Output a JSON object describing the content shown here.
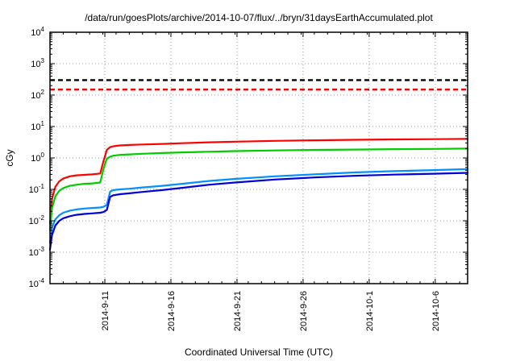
{
  "chart_data": {
    "type": "line",
    "title": "/data/run/goesPlots/archive/2014-10-07/flux/../bryn/31daysEarthAccumulated.plot",
    "xlabel": "Coordinated Universal Time (UTC)",
    "ylabel": "cGy",
    "y_scale": "log",
    "y_range_exponents": [
      -4,
      4
    ],
    "y_ticks_exponents": [
      4,
      3,
      2,
      1,
      0,
      -1,
      -2,
      -3,
      -4
    ],
    "x_range_days": [
      0,
      31.6
    ],
    "x_ticks": [
      {
        "day": 4.15,
        "label": "2014-9-11"
      },
      {
        "day": 9.15,
        "label": "2014-9-16"
      },
      {
        "day": 14.15,
        "label": "2014-9-21"
      },
      {
        "day": 19.15,
        "label": "2014-9-26"
      },
      {
        "day": 24.15,
        "label": "2014-10-1"
      },
      {
        "day": 29.15,
        "label": "2014-10-6"
      }
    ],
    "grid": true,
    "grid_color": "#999999",
    "legend_position": "none",
    "thresholds": [
      {
        "name": "upper-limit-line",
        "value": 300,
        "color": "#000000",
        "style": "dashed"
      },
      {
        "name": "lower-limit-line",
        "value": 150,
        "color": "#ff0000",
        "style": "dashed"
      }
    ],
    "series": [
      {
        "name": "red",
        "color": "#ff0000",
        "points": [
          [
            0,
            0.008
          ],
          [
            0.15,
            0.05
          ],
          [
            0.4,
            0.12
          ],
          [
            0.7,
            0.18
          ],
          [
            1.0,
            0.22
          ],
          [
            1.5,
            0.26
          ],
          [
            2.0,
            0.28
          ],
          [
            2.6,
            0.29
          ],
          [
            3.2,
            0.3
          ],
          [
            3.8,
            0.32
          ],
          [
            4.05,
            0.8
          ],
          [
            4.3,
            1.8
          ],
          [
            4.55,
            2.2
          ],
          [
            4.8,
            2.35
          ],
          [
            5.3,
            2.5
          ],
          [
            6,
            2.58
          ],
          [
            7,
            2.68
          ],
          [
            8.5,
            2.8
          ],
          [
            10,
            2.95
          ],
          [
            12,
            3.15
          ],
          [
            14,
            3.3
          ],
          [
            17,
            3.5
          ],
          [
            20,
            3.65
          ],
          [
            23,
            3.78
          ],
          [
            26,
            3.88
          ],
          [
            29,
            3.95
          ],
          [
            31.6,
            4.05
          ]
        ]
      },
      {
        "name": "green",
        "color": "#00cc00",
        "points": [
          [
            0,
            0.005
          ],
          [
            0.15,
            0.025
          ],
          [
            0.4,
            0.06
          ],
          [
            0.7,
            0.09
          ],
          [
            1.0,
            0.11
          ],
          [
            1.5,
            0.13
          ],
          [
            2.0,
            0.14
          ],
          [
            2.6,
            0.15
          ],
          [
            3.2,
            0.155
          ],
          [
            3.8,
            0.165
          ],
          [
            4.05,
            0.45
          ],
          [
            4.3,
            0.95
          ],
          [
            4.55,
            1.1
          ],
          [
            4.8,
            1.18
          ],
          [
            5.3,
            1.25
          ],
          [
            6,
            1.3
          ],
          [
            7,
            1.36
          ],
          [
            8.5,
            1.43
          ],
          [
            10,
            1.5
          ],
          [
            12,
            1.58
          ],
          [
            14,
            1.65
          ],
          [
            17,
            1.73
          ],
          [
            20,
            1.8
          ],
          [
            23,
            1.85
          ],
          [
            26,
            1.9
          ],
          [
            29,
            1.94
          ],
          [
            31.6,
            1.98
          ]
        ]
      },
      {
        "name": "light-blue",
        "color": "#0090ff",
        "points": [
          [
            0,
            0.002
          ],
          [
            0.15,
            0.006
          ],
          [
            0.4,
            0.011
          ],
          [
            0.7,
            0.015
          ],
          [
            1.0,
            0.018
          ],
          [
            1.5,
            0.021
          ],
          [
            2.0,
            0.023
          ],
          [
            2.6,
            0.0245
          ],
          [
            3.2,
            0.0255
          ],
          [
            3.8,
            0.0265
          ],
          [
            4.05,
            0.028
          ],
          [
            4.3,
            0.032
          ],
          [
            4.55,
            0.085
          ],
          [
            4.8,
            0.095
          ],
          [
            5.3,
            0.1
          ],
          [
            6,
            0.105
          ],
          [
            7,
            0.115
          ],
          [
            8.5,
            0.13
          ],
          [
            10,
            0.15
          ],
          [
            12,
            0.185
          ],
          [
            14,
            0.215
          ],
          [
            17,
            0.26
          ],
          [
            20,
            0.3
          ],
          [
            23,
            0.345
          ],
          [
            26,
            0.38
          ],
          [
            29,
            0.41
          ],
          [
            31.6,
            0.44
          ]
        ]
      },
      {
        "name": "blue",
        "color": "#0000dd",
        "points": [
          [
            0,
            0.0012
          ],
          [
            0.15,
            0.0035
          ],
          [
            0.4,
            0.007
          ],
          [
            0.7,
            0.01
          ],
          [
            1.0,
            0.012
          ],
          [
            1.5,
            0.014
          ],
          [
            2.0,
            0.0155
          ],
          [
            2.6,
            0.0165
          ],
          [
            3.2,
            0.0172
          ],
          [
            3.8,
            0.018
          ],
          [
            4.05,
            0.019
          ],
          [
            4.3,
            0.022
          ],
          [
            4.55,
            0.058
          ],
          [
            4.8,
            0.065
          ],
          [
            5.3,
            0.07
          ],
          [
            6,
            0.075
          ],
          [
            7,
            0.083
          ],
          [
            8.5,
            0.095
          ],
          [
            10,
            0.112
          ],
          [
            12,
            0.14
          ],
          [
            14,
            0.165
          ],
          [
            17,
            0.205
          ],
          [
            20,
            0.24
          ],
          [
            23,
            0.27
          ],
          [
            26,
            0.295
          ],
          [
            29,
            0.315
          ],
          [
            31.6,
            0.335
          ]
        ]
      }
    ]
  }
}
